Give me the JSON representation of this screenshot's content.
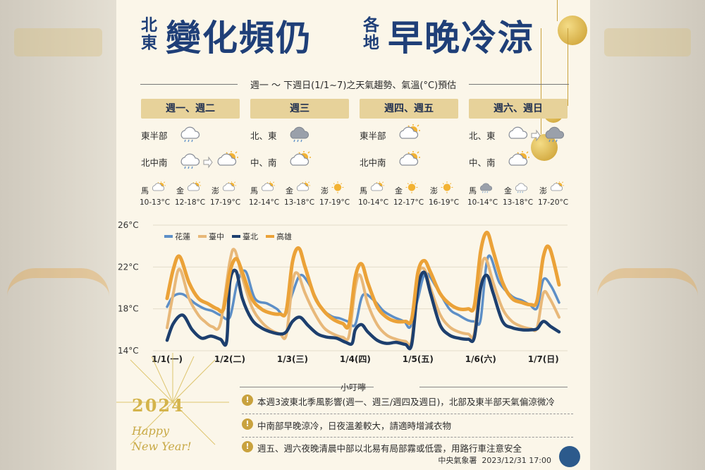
{
  "title": {
    "small_left": [
      "北",
      "東"
    ],
    "big_left": "變化頻仍",
    "small_right": [
      "各",
      "地"
    ],
    "big_right": "早晚冷涼"
  },
  "subtitle": "週一 ～ 下週日(1/1~7)之天氣趨勢、氣溫(°C)預估",
  "periods": [
    {
      "tag": "週一、週二",
      "rows": [
        {
          "region": "東半部",
          "icons": [
            "cloud-rain-icon"
          ]
        },
        {
          "region": "北中南",
          "icons": [
            "cloud-rain-icon",
            "cloud-sun-icon"
          ]
        }
      ],
      "islands": [
        {
          "name": "馬",
          "temp": "10-13°C",
          "icon": "cloud-sun-icon"
        },
        {
          "name": "金",
          "temp": "12-18°C",
          "icon": "cloud-sun-icon"
        },
        {
          "name": "澎",
          "temp": "17-19°C",
          "icon": "cloud-sun-icon"
        }
      ]
    },
    {
      "tag": "週三",
      "rows": [
        {
          "region": "北、東",
          "icons": [
            "rain-cloud-icon"
          ]
        },
        {
          "region": "中、南",
          "icons": [
            "cloud-sun-icon"
          ]
        }
      ],
      "islands": [
        {
          "name": "馬",
          "temp": "12-14°C",
          "icon": "cloud-sun-icon"
        },
        {
          "name": "金",
          "temp": "13-18°C",
          "icon": "cloud-sun-icon"
        },
        {
          "name": "澎",
          "temp": "17-19°C",
          "icon": "sun-icon"
        }
      ]
    },
    {
      "tag": "週四、週五",
      "rows": [
        {
          "region": "東半部",
          "icons": [
            "cloud-sun-icon"
          ]
        },
        {
          "region": "北中南",
          "icons": [
            "cloud-sun-icon"
          ]
        }
      ],
      "islands": [
        {
          "name": "馬",
          "temp": "10-14°C",
          "icon": "cloud-sun-icon"
        },
        {
          "name": "金",
          "temp": "12-17°C",
          "icon": "sun-icon"
        },
        {
          "name": "澎",
          "temp": "16-19°C",
          "icon": "sun-icon"
        }
      ]
    },
    {
      "tag": "週六、週日",
      "rows": [
        {
          "region": "北、東",
          "icons": [
            "cloud-icon",
            "rain-cloud-icon"
          ]
        },
        {
          "region": "中、南",
          "icons": [
            "cloud-sun-icon"
          ]
        }
      ],
      "islands": [
        {
          "name": "馬",
          "temp": "10-14°C",
          "icon": "rain-cloud-icon"
        },
        {
          "name": "金",
          "temp": "13-18°C",
          "icon": "cloud-rain-icon"
        },
        {
          "name": "澎",
          "temp": "17-20°C",
          "icon": "cloud-sun-icon"
        }
      ]
    }
  ],
  "chart_data": {
    "type": "line",
    "ylim": [
      14,
      26
    ],
    "yticks": [
      "14°C",
      "18°C",
      "22°C",
      "26°C"
    ],
    "x_ticks": [
      "1/1(一)",
      "1/2(二)",
      "1/3(三)",
      "1/4(四)",
      "1/5(五)",
      "1/6(六)",
      "1/7(日)"
    ],
    "grid": true,
    "legend_position": "top-left",
    "series": [
      {
        "name": "花蓮",
        "color": "#5d8fc7",
        "x": [
          0,
          0.1,
          0.25,
          0.45,
          0.6,
          0.72,
          0.85,
          1.0,
          1.12,
          1.25,
          1.4,
          1.6,
          1.75,
          1.88,
          2.0,
          2.12,
          2.25,
          2.45,
          2.62,
          2.75,
          2.88,
          3.0,
          3.12,
          3.3,
          3.45,
          3.62,
          3.78,
          3.88,
          4.0,
          4.12,
          4.3,
          4.5,
          4.65,
          4.8,
          4.92,
          5.0,
          5.12,
          5.3,
          5.5,
          5.66,
          5.78,
          5.9,
          6.0,
          6.12,
          6.25
        ],
        "y": [
          18.2,
          19.2,
          19.4,
          18.5,
          18.0,
          17.8,
          17.4,
          17.2,
          20.5,
          21.6,
          19.0,
          18.5,
          18.0,
          17.4,
          19.5,
          21.2,
          20.5,
          18.2,
          17.3,
          17.1,
          16.8,
          16.5,
          19.3,
          18.8,
          17.8,
          17.2,
          16.8,
          16.3,
          19.0,
          21.4,
          20.0,
          18.0,
          17.4,
          16.9,
          16.8,
          17.0,
          23.0,
          20.5,
          19.2,
          18.8,
          18.4,
          18.1,
          20.8,
          20.2,
          18.6
        ]
      },
      {
        "name": "臺中",
        "color": "#e8b879",
        "x": [
          0,
          0.1,
          0.2,
          0.35,
          0.5,
          0.6,
          0.72,
          0.85,
          1.0,
          1.08,
          1.2,
          1.35,
          1.5,
          1.65,
          1.8,
          1.9,
          2.0,
          2.08,
          2.2,
          2.35,
          2.5,
          2.65,
          2.8,
          2.9,
          3.0,
          3.08,
          3.2,
          3.35,
          3.5,
          3.65,
          3.8,
          3.9,
          4.0,
          4.1,
          4.2,
          4.35,
          4.5,
          4.65,
          4.8,
          4.9,
          5.0,
          5.08,
          5.2,
          5.35,
          5.5,
          5.66,
          5.8,
          5.9,
          6.0,
          6.1,
          6.25
        ],
        "y": [
          16.2,
          19.5,
          21.8,
          19.0,
          17.4,
          16.8,
          16.3,
          16.6,
          22.5,
          23.6,
          21.0,
          18.2,
          16.8,
          16.0,
          15.6,
          15.5,
          20.5,
          21.4,
          19.5,
          17.6,
          16.2,
          15.6,
          15.3,
          15.4,
          20.0,
          21.2,
          18.5,
          16.5,
          15.5,
          15.1,
          14.9,
          15.0,
          21.0,
          21.8,
          20.0,
          17.5,
          16.3,
          15.8,
          15.6,
          15.7,
          21.5,
          22.8,
          20.5,
          18.0,
          16.8,
          16.3,
          16.1,
          16.2,
          19.5,
          19.0,
          17.2
        ]
      },
      {
        "name": "臺北",
        "color": "#1d3f6e",
        "x": [
          0,
          0.1,
          0.25,
          0.4,
          0.55,
          0.7,
          0.85,
          0.95,
          1.0,
          1.1,
          1.2,
          1.35,
          1.5,
          1.65,
          1.8,
          1.9,
          2.0,
          2.12,
          2.25,
          2.4,
          2.55,
          2.7,
          2.85,
          2.95,
          3.0,
          3.1,
          3.2,
          3.35,
          3.5,
          3.65,
          3.8,
          3.9,
          4.0,
          4.1,
          4.2,
          4.35,
          4.5,
          4.65,
          4.8,
          4.9,
          5.0,
          5.1,
          5.2,
          5.35,
          5.5,
          5.66,
          5.8,
          5.9,
          6.0,
          6.12,
          6.25
        ],
        "y": [
          15.0,
          16.6,
          17.4,
          16.0,
          15.2,
          15.4,
          15.1,
          14.9,
          20.5,
          21.6,
          19.0,
          17.0,
          16.2,
          15.8,
          15.6,
          15.8,
          16.8,
          17.2,
          16.4,
          15.6,
          15.3,
          15.2,
          14.8,
          14.7,
          16.0,
          16.5,
          15.8,
          15.0,
          14.7,
          14.8,
          14.6,
          14.6,
          20.0,
          21.5,
          19.5,
          16.5,
          15.5,
          15.2,
          15.1,
          15.3,
          20.0,
          21.2,
          19.5,
          16.8,
          16.2,
          16.0,
          16.0,
          16.1,
          16.8,
          16.3,
          15.8
        ]
      },
      {
        "name": "高雄",
        "color": "#eba238",
        "x": [
          0,
          0.1,
          0.2,
          0.35,
          0.5,
          0.65,
          0.8,
          0.9,
          1.0,
          1.1,
          1.2,
          1.35,
          1.5,
          1.65,
          1.8,
          1.9,
          2.0,
          2.1,
          2.2,
          2.35,
          2.5,
          2.65,
          2.8,
          2.9,
          3.0,
          3.1,
          3.2,
          3.35,
          3.5,
          3.65,
          3.8,
          3.9,
          4.0,
          4.1,
          4.2,
          4.35,
          4.5,
          4.65,
          4.8,
          4.9,
          5.0,
          5.1,
          5.2,
          5.35,
          5.5,
          5.66,
          5.8,
          5.9,
          6.0,
          6.1,
          6.25
        ],
        "y": [
          19.0,
          21.8,
          23.0,
          20.5,
          19.0,
          18.5,
          18.0,
          18.0,
          21.5,
          22.8,
          21.5,
          19.0,
          18.0,
          17.6,
          17.5,
          17.8,
          22.5,
          23.8,
          22.0,
          19.2,
          17.8,
          17.0,
          16.6,
          16.5,
          21.0,
          22.3,
          20.5,
          18.2,
          17.2,
          16.8,
          16.8,
          17.0,
          21.5,
          22.6,
          21.5,
          19.5,
          18.5,
          18.0,
          18.0,
          18.3,
          23.5,
          25.3,
          23.5,
          20.5,
          19.0,
          18.6,
          18.4,
          18.8,
          23.0,
          23.8,
          20.3
        ]
      }
    ]
  },
  "tips": {
    "title": "小叮嚀",
    "items": [
      {
        "n": "1",
        "text": "本週3波東北季風影響(週一、週三/週四及週日)，北部及東半部天氣偏涼微冷"
      },
      {
        "n": "2",
        "text": "中南部早晚涼冷，日夜溫差較大，請適時增減衣物"
      },
      {
        "n": "3",
        "text": "週五、週六夜晚清晨中部以北易有局部霧或低雲，用路行車注意安全"
      }
    ]
  },
  "decor": {
    "year": "2024",
    "greeting_line1": "Happy",
    "greeting_line2": "New Year!"
  },
  "footer": {
    "agency": "中央氣象署",
    "datetime": "2023/12/31 17:00"
  },
  "colors": {
    "title": "#1f3f78",
    "tag": "#e7d29a",
    "gold": "#c9a23e"
  }
}
